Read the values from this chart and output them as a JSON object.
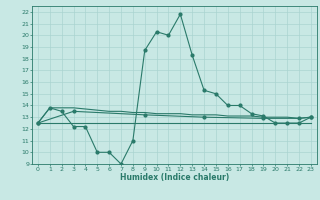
{
  "xlabel": "Humidex (Indice chaleur)",
  "bg_color": "#c8e8e4",
  "grid_color": "#aad4d0",
  "line_color": "#2a7a6a",
  "xlim": [
    -0.5,
    23.5
  ],
  "ylim": [
    9,
    22.5
  ],
  "xticks": [
    0,
    1,
    2,
    3,
    4,
    5,
    6,
    7,
    8,
    9,
    10,
    11,
    12,
    13,
    14,
    15,
    16,
    17,
    18,
    19,
    20,
    21,
    22,
    23
  ],
  "yticks": [
    9,
    10,
    11,
    12,
    13,
    14,
    15,
    16,
    17,
    18,
    19,
    20,
    21,
    22
  ],
  "series_peak_x": [
    0,
    1,
    2,
    3,
    4,
    5,
    6,
    7,
    8,
    9,
    10,
    11,
    12,
    13,
    14,
    15,
    16,
    17,
    18,
    19,
    20,
    21,
    22,
    23
  ],
  "series_peak_y": [
    12.5,
    13.8,
    13.5,
    12.2,
    12.2,
    10.0,
    10.0,
    9.0,
    11.0,
    18.7,
    20.3,
    20.0,
    21.8,
    18.3,
    15.3,
    15.0,
    14.0,
    14.0,
    13.3,
    13.1,
    12.5,
    12.5,
    12.5,
    13.0
  ],
  "series_flat1_x": [
    0,
    1,
    2,
    3,
    4,
    5,
    6,
    7,
    8,
    9,
    10,
    11,
    12,
    13,
    14,
    15,
    16,
    17,
    18,
    19,
    20,
    21,
    22,
    23
  ],
  "series_flat1_y": [
    12.5,
    13.8,
    13.8,
    13.8,
    13.7,
    13.6,
    13.5,
    13.5,
    13.4,
    13.4,
    13.3,
    13.3,
    13.3,
    13.2,
    13.2,
    13.2,
    13.1,
    13.1,
    13.1,
    13.0,
    13.0,
    13.0,
    12.9,
    13.0
  ],
  "series_flat2_x": [
    0,
    1,
    2,
    3,
    4,
    5,
    6,
    7,
    8,
    9,
    10,
    11,
    12,
    13,
    14,
    15,
    16,
    17,
    18,
    19,
    20,
    21,
    22,
    23
  ],
  "series_flat2_y": [
    12.5,
    12.5,
    12.5,
    12.5,
    12.5,
    12.5,
    12.5,
    12.5,
    12.5,
    12.5,
    12.5,
    12.5,
    12.5,
    12.5,
    12.5,
    12.5,
    12.5,
    12.5,
    12.5,
    12.5,
    12.5,
    12.5,
    12.5,
    12.5
  ],
  "series_sparse_x": [
    0,
    3,
    9,
    14,
    19,
    22,
    23
  ],
  "series_sparse_y": [
    12.5,
    13.5,
    13.2,
    13.0,
    12.9,
    12.9,
    13.0
  ]
}
